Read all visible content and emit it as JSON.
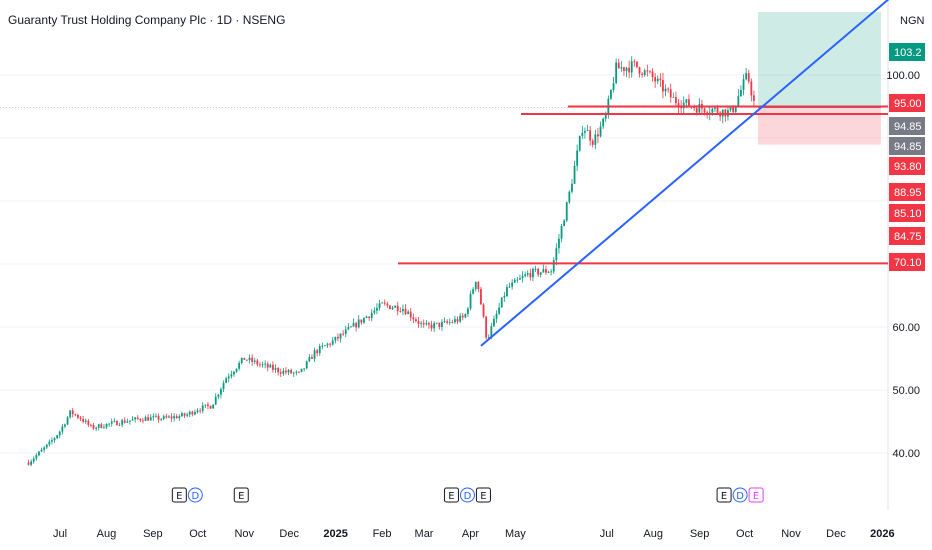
{
  "header": {
    "title": "Guaranty Trust Holding Company Plc · 1D · NSENG",
    "currency": "NGN"
  },
  "chart_data": {
    "type": "candlestick",
    "title": "Guaranty Trust Holding Company Plc · 1D · NSENG",
    "currency": "NGN",
    "y_ticks": [
      40.0,
      50.0,
      60.0,
      100.0
    ],
    "x_ticks": [
      "Jul",
      "Aug",
      "Sep",
      "Oct",
      "Nov",
      "Dec",
      "2025",
      "Feb",
      "Mar",
      "Apr",
      "May",
      "Jul",
      "Aug",
      "Sep",
      "Oct",
      "Nov",
      "Dec",
      "2026"
    ],
    "price_labels": [
      {
        "text": "103.2",
        "value": 103.2,
        "color": "#089981"
      },
      {
        "text": "95.00",
        "value": 95.0,
        "color": "#f23645"
      },
      {
        "text": "94.85",
        "value": 94.85,
        "color": "#787b86"
      },
      {
        "text": "94.85",
        "value": 94.85,
        "color": "#787b86"
      },
      {
        "text": "93.80",
        "value": 93.8,
        "color": "#f23645"
      },
      {
        "text": "88.95",
        "value": 88.95,
        "color": "#f23645"
      },
      {
        "text": "85.10",
        "value": 85.1,
        "color": "#f23645"
      },
      {
        "text": "84.75",
        "value": 84.75,
        "color": "#f23645"
      },
      {
        "text": "70.10",
        "value": 70.1,
        "color": "#f23645"
      }
    ],
    "horizontal_levels": [
      95.0,
      93.8,
      70.1
    ],
    "trendline": {
      "from": {
        "date": "2025-04-08",
        "value": 57.0
      },
      "to": {
        "date": "2026-01-05",
        "value": 112.0
      }
    },
    "position": {
      "entry": 94.85,
      "target": 110.0,
      "stop": 88.95,
      "start": "2025-10-10",
      "end": "2025-12-31"
    },
    "events": [
      {
        "date": "2024-09-24",
        "marks": [
          "E",
          "D"
        ]
      },
      {
        "date": "2024-10-30",
        "marks": [
          "E"
        ]
      },
      {
        "date": "2025-03-30",
        "marks": [
          "E",
          "D",
          "E"
        ]
      },
      {
        "date": "2025-09-28",
        "marks": [
          "E",
          "D",
          "E"
        ]
      }
    ],
    "series": [
      {
        "date": "2024-06-10",
        "value": 38.5
      },
      {
        "date": "2024-06-17",
        "value": 40.0
      },
      {
        "date": "2024-06-24",
        "value": 41.5
      },
      {
        "date": "2024-07-01",
        "value": 43.5
      },
      {
        "date": "2024-07-08",
        "value": 46.5
      },
      {
        "date": "2024-07-15",
        "value": 45.5
      },
      {
        "date": "2024-07-22",
        "value": 44.0
      },
      {
        "date": "2024-08-01",
        "value": 44.5
      },
      {
        "date": "2024-08-12",
        "value": 45.0
      },
      {
        "date": "2024-08-26",
        "value": 45.5
      },
      {
        "date": "2024-09-09",
        "value": 45.5
      },
      {
        "date": "2024-09-23",
        "value": 46.0
      },
      {
        "date": "2024-10-01",
        "value": 47.0
      },
      {
        "date": "2024-10-10",
        "value": 47.5
      },
      {
        "date": "2024-10-20",
        "value": 52.0
      },
      {
        "date": "2024-11-01",
        "value": 55.0
      },
      {
        "date": "2024-11-12",
        "value": 54.0
      },
      {
        "date": "2024-11-25",
        "value": 53.0
      },
      {
        "date": "2024-12-08",
        "value": 52.5
      },
      {
        "date": "2024-12-18",
        "value": 56.0
      },
      {
        "date": "2025-01-01",
        "value": 58.0
      },
      {
        "date": "2025-01-15",
        "value": 60.5
      },
      {
        "date": "2025-02-01",
        "value": 63.5
      },
      {
        "date": "2025-02-15",
        "value": 63.0
      },
      {
        "date": "2025-03-01",
        "value": 60.0
      },
      {
        "date": "2025-03-15",
        "value": 60.5
      },
      {
        "date": "2025-03-28",
        "value": 61.5
      },
      {
        "date": "2025-04-05",
        "value": 68.0
      },
      {
        "date": "2025-04-12",
        "value": 58.0
      },
      {
        "date": "2025-04-25",
        "value": 66.0
      },
      {
        "date": "2025-05-10",
        "value": 68.5
      },
      {
        "date": "2025-05-25",
        "value": 69.0
      },
      {
        "date": "2025-06-05",
        "value": 80.0
      },
      {
        "date": "2025-06-15",
        "value": 92.0
      },
      {
        "date": "2025-06-22",
        "value": 89.5
      },
      {
        "date": "2025-06-30",
        "value": 93.0
      },
      {
        "date": "2025-07-07",
        "value": 101.0
      },
      {
        "date": "2025-07-20",
        "value": 101.5
      },
      {
        "date": "2025-08-01",
        "value": 99.5
      },
      {
        "date": "2025-08-15",
        "value": 96.0
      },
      {
        "date": "2025-08-28",
        "value": 95.0
      },
      {
        "date": "2025-09-10",
        "value": 94.5
      },
      {
        "date": "2025-09-22",
        "value": 94.0
      },
      {
        "date": "2025-10-03",
        "value": 100.0
      },
      {
        "date": "2025-10-08",
        "value": 94.85
      }
    ]
  }
}
